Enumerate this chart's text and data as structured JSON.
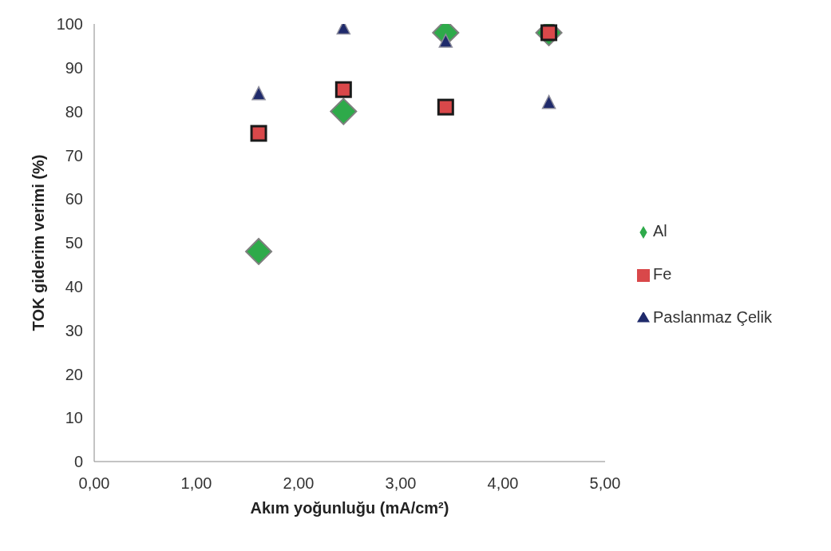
{
  "chart_data": {
    "type": "scatter",
    "xlabel": "Akım yoğunluğu (mA/cm²)",
    "ylabel": "TOK giderim verimi (%)",
    "xlim": [
      0,
      5
    ],
    "xticks": [
      {
        "value": 0,
        "label": "0,00"
      },
      {
        "value": 1,
        "label": "1,00"
      },
      {
        "value": 2,
        "label": "2,00"
      },
      {
        "value": 3,
        "label": "3,00"
      },
      {
        "value": 4,
        "label": "4,00"
      },
      {
        "value": 5,
        "label": "5,00"
      }
    ],
    "ylim": [
      0,
      100
    ],
    "yticks": [
      0,
      10,
      20,
      30,
      40,
      50,
      60,
      70,
      80,
      90,
      100
    ],
    "grid": false,
    "legend": "right",
    "x": [
      1.61,
      2.44,
      3.44,
      4.45
    ],
    "series": [
      {
        "name": "Al",
        "color": "#2eaa4a",
        "marker": "diamond",
        "values": [
          48,
          80,
          98,
          98
        ]
      },
      {
        "name": "Fe",
        "color": "#d9484a",
        "marker": "square",
        "values": [
          75,
          85,
          81,
          98
        ]
      },
      {
        "name": "Paslanmaz Çelik",
        "color": "#1f2a6b",
        "marker": "triangle",
        "values": [
          84,
          99,
          96,
          82
        ]
      }
    ]
  }
}
